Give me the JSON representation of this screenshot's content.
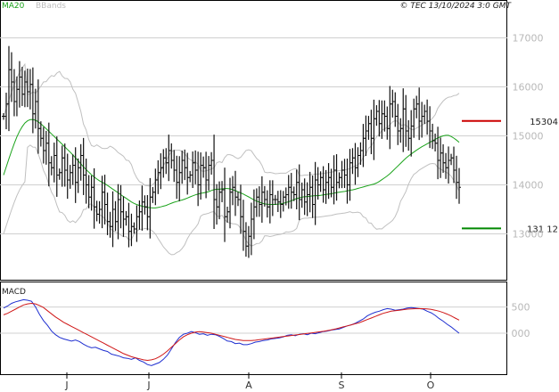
{
  "header": {
    "legend_ma": "MA20",
    "legend_bb": "BBands",
    "copyright": "© TEC 13/10/2024 3:0 GMT"
  },
  "macd_label": "MACD",
  "colors": {
    "ma": "#1aa31a",
    "bbands": "#c0c0c0",
    "price": "#111111",
    "macd": "#1f2fd0",
    "signal": "#d01818",
    "resistance": "#cc0000",
    "support": "#008800",
    "grid": "#d0d0d0"
  },
  "chart_data": [
    {
      "type": "ohlc",
      "title": "",
      "x_ticks": [
        "J",
        "J",
        "A",
        "S",
        "O"
      ],
      "ylim": [
        12100,
        17700
      ],
      "y_ticks": [
        13000,
        14000,
        15000,
        16000,
        17000
      ],
      "y_tick_labels": [
        "13000",
        "14000",
        "15000",
        "16000",
        "17000"
      ],
      "grid": "horizontal",
      "levels": [
        {
          "name": "resistance",
          "value": 15304,
          "label": "15304"
        },
        {
          "name": "support",
          "value": 13112,
          "label": "131 12"
        }
      ],
      "close": [
        15400,
        15650,
        16350,
        16100,
        15700,
        15950,
        16200,
        15850,
        16100,
        15900,
        16050,
        15450,
        15700,
        15150,
        14950,
        14700,
        14850,
        14450,
        14350,
        14600,
        14200,
        14250,
        14550,
        14300,
        14100,
        14250,
        14400,
        14050,
        14350,
        14600,
        14200,
        14000,
        13750,
        13950,
        13550,
        13400,
        13500,
        13850,
        13600,
        13250,
        13150,
        13500,
        13250,
        13700,
        13450,
        13300,
        13350,
        13050,
        13150,
        13100,
        13350,
        13450,
        13650,
        13550,
        13350,
        13750,
        13850,
        14100,
        14250,
        14350,
        14550,
        14450,
        14700,
        14500,
        14300,
        14050,
        14250,
        14500,
        14350,
        14150,
        14200,
        14450,
        14300,
        14000,
        14400,
        14350,
        14100,
        14400,
        14500,
        13700,
        13550,
        13850,
        13900,
        13350,
        13450,
        13850,
        13950,
        13750,
        13700,
        13350,
        13050,
        12750,
        12950,
        13300,
        13550,
        13750,
        13600,
        13850,
        13700,
        13550,
        13800,
        13700,
        13700,
        13650,
        13600,
        13750,
        13800,
        13950,
        13850,
        13800,
        14050,
        13700,
        13900,
        13650,
        13800,
        13950,
        13600,
        14100,
        14000,
        14150,
        13900,
        14050,
        14150,
        13950,
        14300,
        14050,
        14150,
        14300,
        14200,
        14000,
        14450,
        14550,
        14350,
        14600,
        14700,
        14950,
        15100,
        15250,
        14950,
        15350,
        15500,
        15250,
        15450,
        15400,
        15150,
        15650,
        15700,
        15400,
        15100,
        15150,
        15550,
        15100,
        14950,
        15200,
        15550,
        15650,
        15300,
        15400,
        15500,
        15300,
        15100,
        14900,
        14850,
        14500,
        14650,
        14450,
        14350,
        14500,
        14550,
        14300,
        14050,
        13950
      ],
      "ma20": [
        14200,
        14420,
        14640,
        14840,
        15020,
        15160,
        15260,
        15320,
        15340,
        15320,
        15280,
        15220,
        15150,
        15080,
        15010,
        14940,
        14870,
        14800,
        14730,
        14660,
        14580,
        14500,
        14420,
        14340,
        14270,
        14200,
        14140,
        14090,
        14050,
        14010,
        13960,
        13910,
        13860,
        13810,
        13760,
        13710,
        13660,
        13620,
        13590,
        13570,
        13550,
        13540,
        13530,
        13530,
        13540,
        13560,
        13580,
        13610,
        13640,
        13660,
        13680,
        13700,
        13730,
        13760,
        13790,
        13810,
        13830,
        13840,
        13860,
        13890,
        13910,
        13910,
        13920,
        13930,
        13920,
        13900,
        13870,
        13840,
        13810,
        13770,
        13730,
        13690,
        13660,
        13630,
        13610,
        13600,
        13600,
        13600,
        13610,
        13620,
        13640,
        13660,
        13690,
        13720,
        13740,
        13760,
        13760,
        13770,
        13780,
        13780,
        13790,
        13800,
        13810,
        13820,
        13840,
        13850,
        13860,
        13870,
        13890,
        13900,
        13920,
        13940,
        13960,
        13980,
        14000,
        14020,
        14050,
        14100,
        14150,
        14200,
        14270,
        14340,
        14410,
        14480,
        14550,
        14610,
        14660,
        14710,
        14760,
        14800,
        14840,
        14880,
        14920,
        14960,
        14990,
        15010,
        15010,
        14980,
        14930,
        14870
      ]
    },
    {
      "type": "line",
      "title": "",
      "x_ticks": [
        "J",
        "J",
        "A",
        "S",
        "O"
      ],
      "ylim": [
        -750,
        920
      ],
      "y_ticks": [
        0,
        500
      ],
      "y_tick_labels": [
        "000",
        "500"
      ],
      "series": [
        {
          "name": "macd",
          "values": [
            480,
            520,
            570,
            600,
            620,
            640,
            630,
            610,
            500,
            360,
            240,
            150,
            40,
            -30,
            -80,
            -110,
            -130,
            -150,
            -130,
            -160,
            -210,
            -250,
            -280,
            -270,
            -300,
            -330,
            -350,
            -400,
            -420,
            -440,
            -470,
            -480,
            -500,
            -470,
            -520,
            -550,
            -600,
            -620,
            -590,
            -560,
            -500,
            -420,
            -300,
            -180,
            -80,
            -20,
            0,
            30,
            10,
            -20,
            -10,
            -40,
            -20,
            -30,
            -60,
            -100,
            -150,
            -160,
            -200,
            -190,
            -220,
            -220,
            -200,
            -170,
            -160,
            -140,
            -130,
            -110,
            -100,
            -90,
            -70,
            -40,
            -30,
            -50,
            -20,
            -10,
            -30,
            0,
            -10,
            10,
            30,
            40,
            60,
            70,
            80,
            110,
            140,
            160,
            190,
            230,
            270,
            330,
            370,
            400,
            420,
            450,
            470,
            460,
            440,
            450,
            460,
            480,
            490,
            480,
            470,
            460,
            420,
            390,
            340,
            280,
            230,
            170,
            120,
            60,
            0
          ]
        },
        {
          "name": "signal",
          "values": [
            350,
            380,
            420,
            460,
            500,
            540,
            560,
            570,
            560,
            530,
            490,
            430,
            370,
            310,
            260,
            210,
            170,
            130,
            90,
            50,
            10,
            -30,
            -70,
            -110,
            -150,
            -190,
            -230,
            -270,
            -310,
            -350,
            -390,
            -420,
            -450,
            -470,
            -490,
            -510,
            -520,
            -510,
            -490,
            -450,
            -400,
            -340,
            -270,
            -200,
            -130,
            -70,
            -30,
            0,
            20,
            30,
            20,
            10,
            0,
            -20,
            -40,
            -60,
            -80,
            -100,
            -120,
            -130,
            -140,
            -140,
            -140,
            -135,
            -125,
            -115,
            -105,
            -95,
            -85,
            -75,
            -65,
            -55,
            -45,
            -35,
            -25,
            -15,
            -5,
            5,
            15,
            25,
            35,
            50,
            65,
            80,
            100,
            120,
            140,
            160,
            180,
            200,
            230,
            260,
            290,
            320,
            350,
            380,
            400,
            420,
            430,
            440,
            450,
            460,
            465,
            468,
            470,
            468,
            465,
            455,
            440,
            420,
            395,
            365,
            330,
            290,
            250
          ]
        }
      ]
    }
  ]
}
